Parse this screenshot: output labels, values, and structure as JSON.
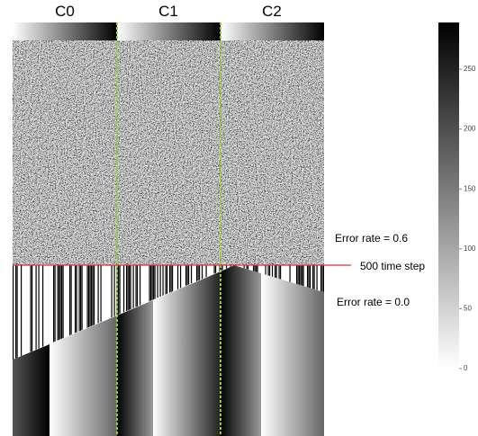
{
  "columns": [
    "C0",
    "C1",
    "C2"
  ],
  "annotations": {
    "error_top": "Error rate =  0.6",
    "time_step": "500 time step",
    "error_bottom": "Error rate = 0.0"
  },
  "colorbar": {
    "ticks": [
      0,
      50,
      100,
      150,
      200,
      250
    ]
  }
}
